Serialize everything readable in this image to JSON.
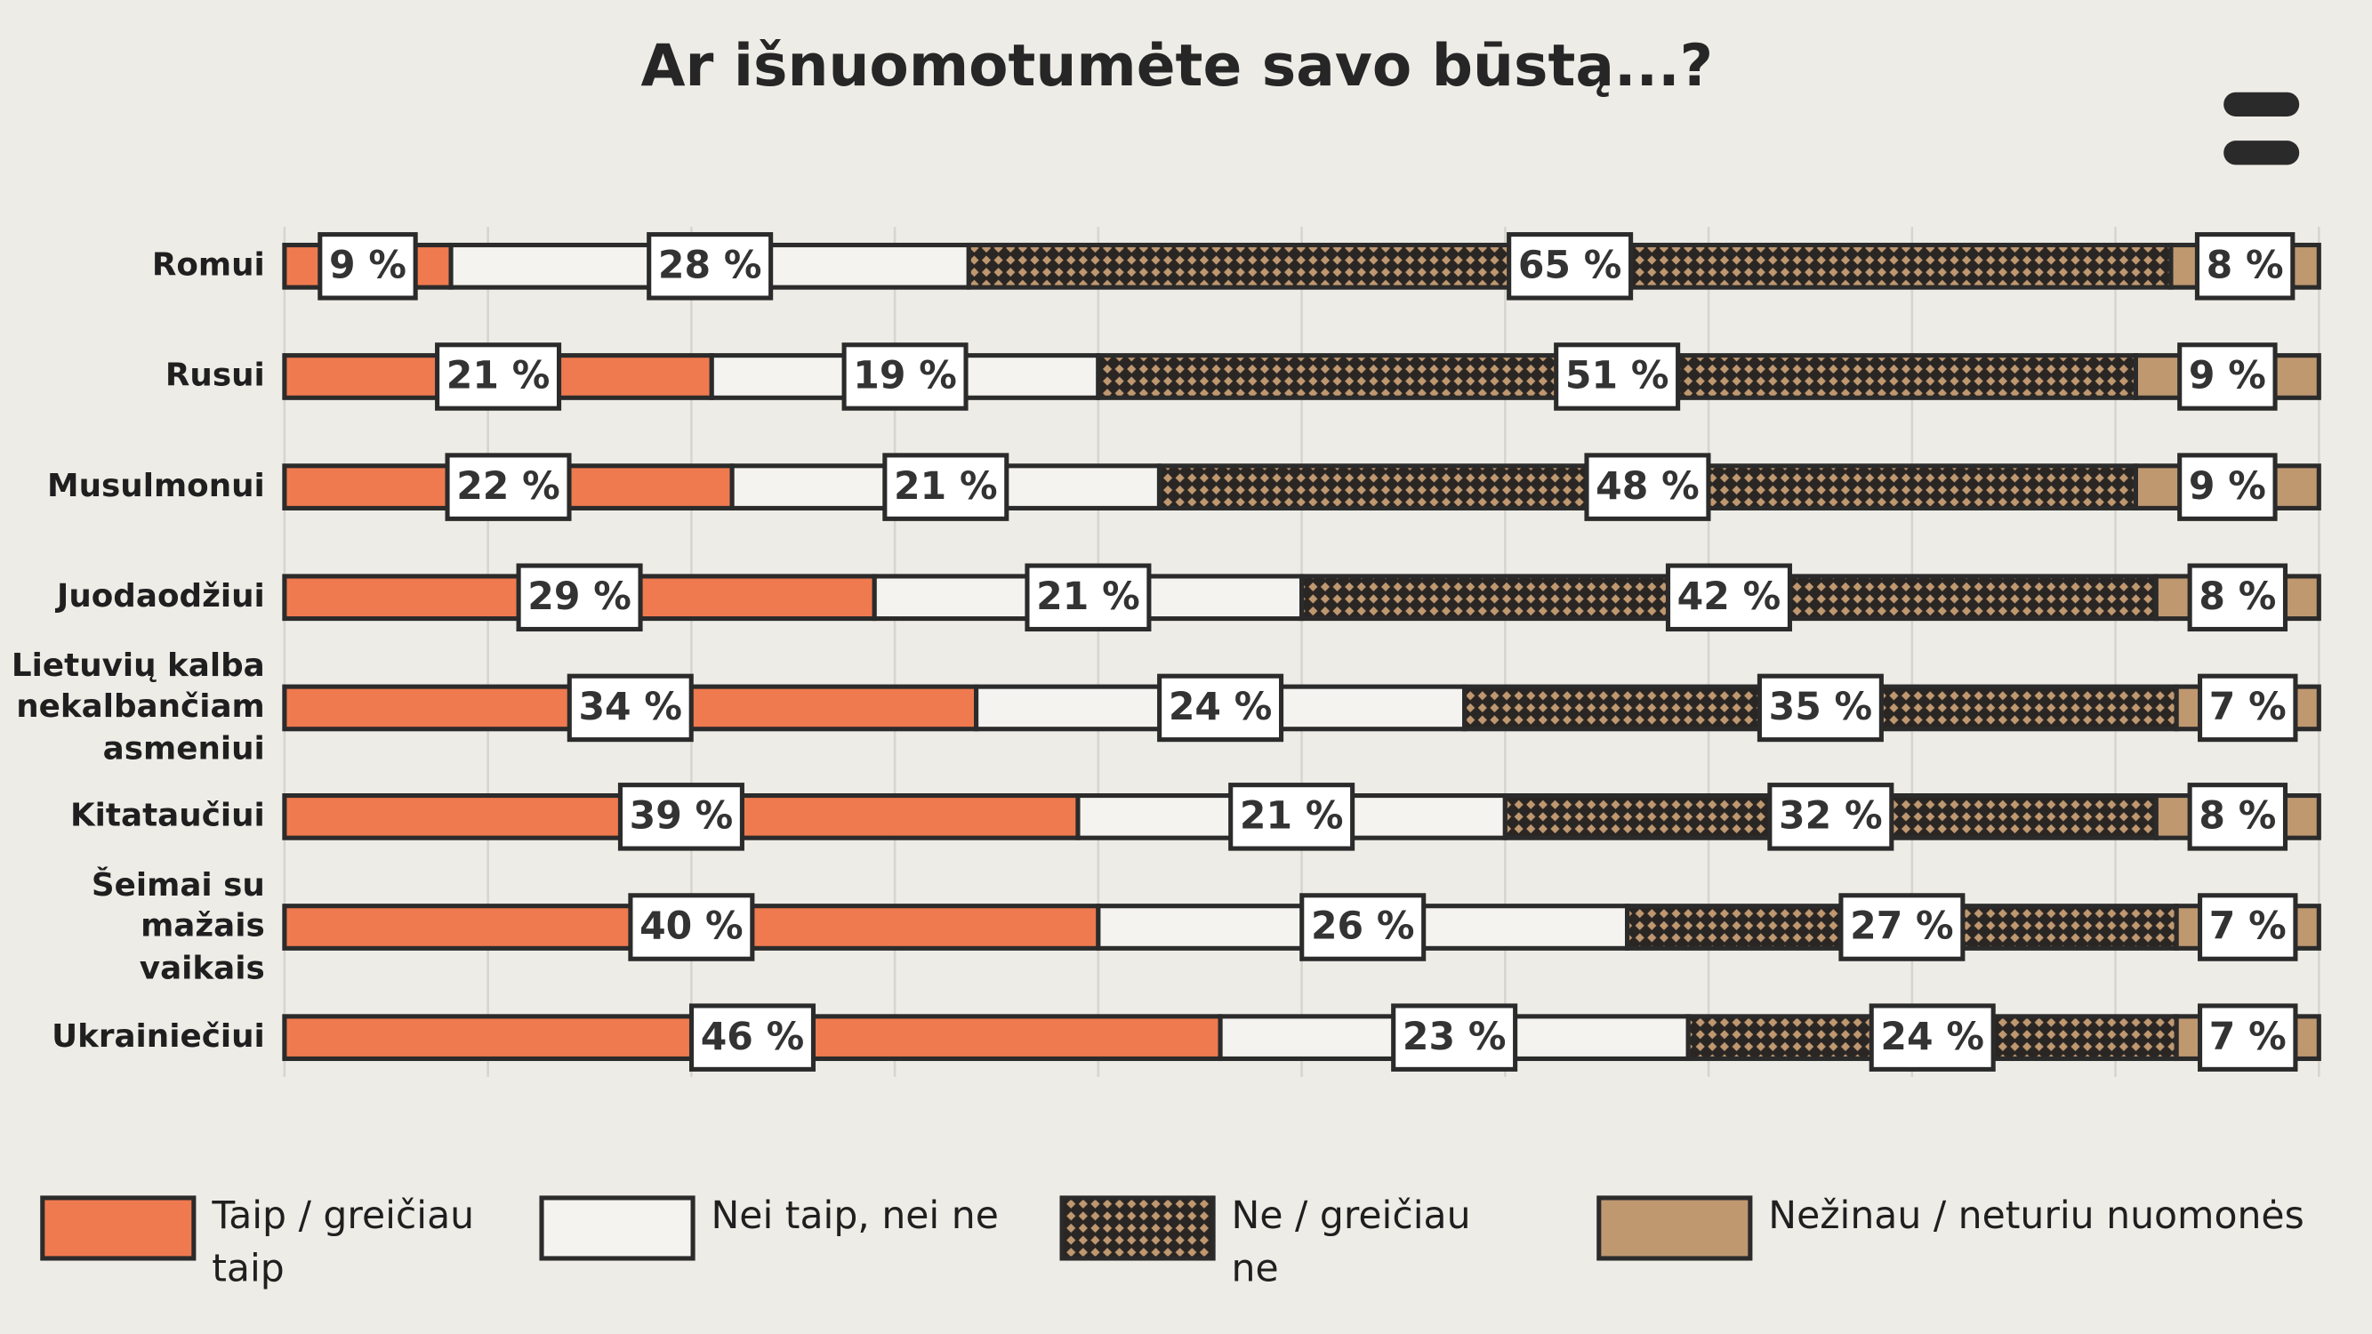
{
  "chart_data": {
    "type": "stacked-bar",
    "title": "Ar išnuomotumėte savo būstą...?",
    "categories": [
      "Romui",
      "Rusui",
      "Musulmonui",
      "Juodaodžiui",
      "Lietuvių kalba nekalbančiam asmeniui",
      "Kitataučiui",
      "Šeimai su mažais vaikais",
      "Ukrainiečiui"
    ],
    "series": [
      {
        "name": "Taip / greičiau taip",
        "color": "#ef7a4f",
        "values": [
          9,
          21,
          22,
          29,
          34,
          39,
          40,
          46
        ],
        "value_labels": [
          "9 %",
          "21 %",
          "22 %",
          "29 %",
          "34 %",
          "39 %",
          "40 %",
          "46 %"
        ]
      },
      {
        "name": "Nei taip, nei ne",
        "color": "#f4f3ef",
        "values": [
          28,
          19,
          21,
          21,
          24,
          21,
          26,
          23
        ],
        "value_labels": [
          "28 %",
          "19 %",
          "21 %",
          "21 %",
          "24 %",
          "21 %",
          "26 %",
          "23 %"
        ]
      },
      {
        "name": "Ne / greičiau ne",
        "color": "#2a2624",
        "values": [
          65,
          51,
          48,
          42,
          35,
          32,
          27,
          24
        ],
        "value_labels": [
          "65 %",
          "51 %",
          "48 %",
          "42 %",
          "35 %",
          "32 %",
          "27 %",
          "24 %"
        ]
      },
      {
        "name": "Nežinau / neturiu nuomonės",
        "color": "#bf9870",
        "values": [
          8,
          9,
          9,
          8,
          7,
          8,
          7,
          7
        ],
        "value_labels": [
          "8 %",
          "9 %",
          "9 %",
          "8 %",
          "7 %",
          "8 %",
          "7 %",
          "7 %"
        ]
      }
    ]
  }
}
